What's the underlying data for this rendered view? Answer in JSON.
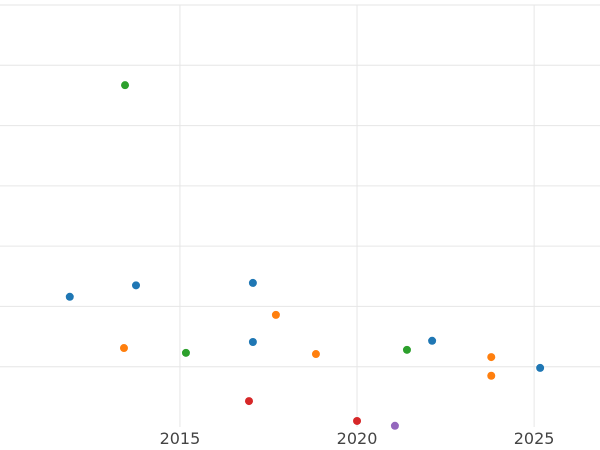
{
  "chart_data": {
    "type": "scatter",
    "xlim": [
      2009.92,
      2026.86
    ],
    "xticks": [
      2015,
      2020,
      2025
    ],
    "ylim": [
      0,
      7
    ],
    "ygrid": [
      1,
      2,
      3,
      4,
      5,
      6,
      7
    ],
    "grid": true,
    "series": [
      {
        "color": "#1f77b4",
        "x": [
          2011.89,
          2013.76,
          2017.06,
          2017.06,
          2022.12,
          2025.17
        ],
        "values": [
          2.16,
          2.35,
          2.39,
          1.41,
          1.43,
          0.98
        ]
      },
      {
        "color": "#ff7f0e",
        "x": [
          2013.42,
          2017.71,
          2018.84,
          2023.79,
          2023.79
        ],
        "values": [
          1.31,
          1.86,
          1.21,
          1.16,
          0.85
        ]
      },
      {
        "color": "#2ca02c",
        "x": [
          2013.45,
          2015.17,
          2021.41
        ],
        "values": [
          5.67,
          1.23,
          1.28
        ]
      },
      {
        "color": "#d62728",
        "x": [
          2016.95,
          2020.0
        ],
        "values": [
          0.43,
          0.1
        ]
      },
      {
        "color": "#9467bd",
        "x": [
          2021.07
        ],
        "values": [
          0.02
        ]
      }
    ]
  }
}
